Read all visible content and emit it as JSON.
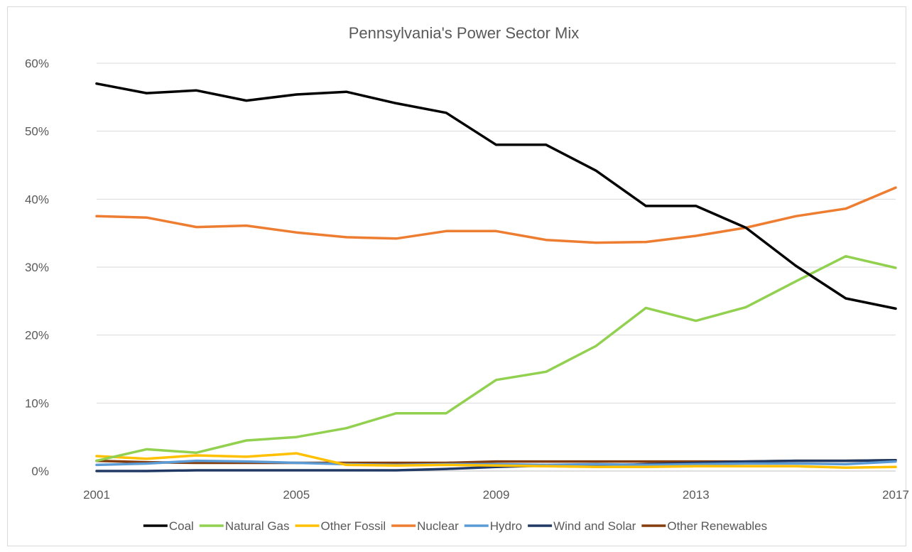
{
  "chart_data": {
    "type": "line",
    "title": "Pennsylvania's Power Sector Mix",
    "xlabel": "",
    "ylabel": "",
    "x": [
      2001,
      2002,
      2003,
      2004,
      2005,
      2006,
      2007,
      2008,
      2009,
      2010,
      2011,
      2012,
      2013,
      2014,
      2015,
      2016,
      2017
    ],
    "x_tick_labels": [
      "2001",
      "2005",
      "2009",
      "2013",
      "2017"
    ],
    "x_tick_values": [
      2001,
      2005,
      2009,
      2013,
      2017
    ],
    "ylim": [
      0,
      60
    ],
    "y_ticks": [
      0,
      10,
      20,
      30,
      40,
      50,
      60
    ],
    "y_tick_labels": [
      "0%",
      "10%",
      "20%",
      "30%",
      "40%",
      "50%",
      "60%"
    ],
    "grid": true,
    "legend_position": "bottom",
    "series": [
      {
        "name": "Coal",
        "color": "#000000",
        "values": [
          57.0,
          55.6,
          56.0,
          54.5,
          55.4,
          55.8,
          54.1,
          52.7,
          48.0,
          48.0,
          44.2,
          39.0,
          39.0,
          35.8,
          30.2,
          25.4,
          23.9
        ]
      },
      {
        "name": "Natural Gas",
        "color": "#92d050",
        "values": [
          1.5,
          3.2,
          2.7,
          4.5,
          5.0,
          6.3,
          8.5,
          8.5,
          13.4,
          14.6,
          18.4,
          24.0,
          22.1,
          24.1,
          27.9,
          31.6,
          29.9
        ]
      },
      {
        "name": "Other Fossil",
        "color": "#ffc000",
        "values": [
          2.2,
          1.8,
          2.3,
          2.1,
          2.6,
          0.9,
          0.8,
          0.9,
          0.8,
          0.7,
          0.6,
          0.6,
          0.7,
          0.7,
          0.7,
          0.5,
          0.6
        ]
      },
      {
        "name": "Nuclear",
        "color": "#ed7d31",
        "values": [
          37.5,
          37.3,
          35.9,
          36.1,
          35.1,
          34.4,
          34.2,
          35.3,
          35.3,
          34.0,
          33.6,
          33.7,
          34.6,
          35.8,
          37.5,
          38.6,
          41.7
        ]
      },
      {
        "name": "Hydro",
        "color": "#5b9bd5",
        "values": [
          0.9,
          1.1,
          1.5,
          1.4,
          1.2,
          1.0,
          0.9,
          1.0,
          1.0,
          0.9,
          1.0,
          0.9,
          1.0,
          1.1,
          1.1,
          1.0,
          1.4
        ]
      },
      {
        "name": "Wind and Solar",
        "color": "#203864",
        "values": [
          0.0,
          0.0,
          0.1,
          0.1,
          0.1,
          0.1,
          0.1,
          0.3,
          0.6,
          0.8,
          0.8,
          1.0,
          1.2,
          1.4,
          1.5,
          1.5,
          1.6
        ]
      },
      {
        "name": "Other Renewables",
        "color": "#843c0c",
        "values": [
          1.5,
          1.3,
          1.2,
          1.2,
          1.2,
          1.2,
          1.2,
          1.2,
          1.4,
          1.4,
          1.4,
          1.4,
          1.4,
          1.4,
          1.5,
          1.5,
          1.6
        ]
      }
    ]
  }
}
